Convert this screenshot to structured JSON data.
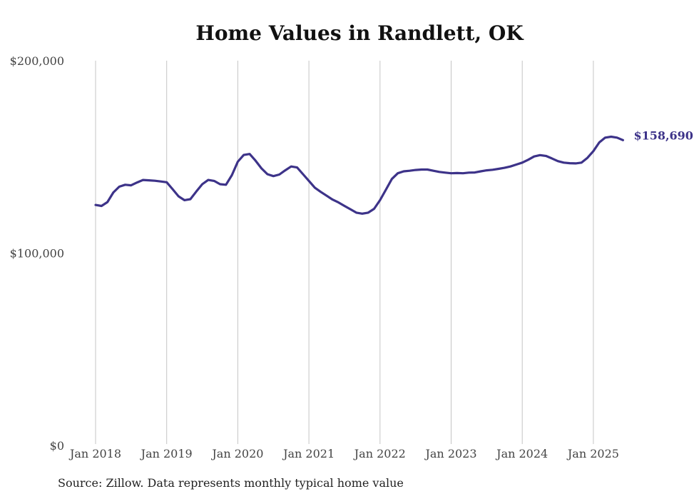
{
  "page": {
    "title": "Home Values in Randlett, OK",
    "source": "Source: Zillow. Data represents monthly typical home value"
  },
  "colors": {
    "line": "#3d3389",
    "grid": "#c4c4c4",
    "tick_text": "#444444"
  },
  "chart_data": {
    "type": "line",
    "title": "Home Values in Randlett, OK",
    "xlabel": "",
    "ylabel": "",
    "ylim": [
      0,
      200000
    ],
    "y_ticks": [
      {
        "value": 0,
        "label": "$0"
      },
      {
        "value": 100000,
        "label": "$100,000"
      },
      {
        "value": 200000,
        "label": "$200,000"
      }
    ],
    "x_ticks": [
      {
        "date": "2018-01",
        "label": "Jan 2018"
      },
      {
        "date": "2019-01",
        "label": "Jan 2019"
      },
      {
        "date": "2020-01",
        "label": "Jan 2020"
      },
      {
        "date": "2021-01",
        "label": "Jan 2021"
      },
      {
        "date": "2022-01",
        "label": "Jan 2022"
      },
      {
        "date": "2023-01",
        "label": "Jan 2023"
      },
      {
        "date": "2024-01",
        "label": "Jan 2024"
      },
      {
        "date": "2025-01",
        "label": "Jan 2025"
      }
    ],
    "grid": "vertical",
    "end_label": "$158,690",
    "series": [
      {
        "x": [
          "2018-01",
          "2018-02",
          "2018-03",
          "2018-04",
          "2018-05",
          "2018-06",
          "2018-07",
          "2018-08",
          "2018-09",
          "2018-10",
          "2018-11",
          "2018-12",
          "2019-01",
          "2019-02",
          "2019-03",
          "2019-04",
          "2019-05",
          "2019-06",
          "2019-07",
          "2019-08",
          "2019-09",
          "2019-10",
          "2019-11",
          "2019-12",
          "2020-01",
          "2020-02",
          "2020-03",
          "2020-04",
          "2020-05",
          "2020-06",
          "2020-07",
          "2020-08",
          "2020-09",
          "2020-10",
          "2020-11",
          "2020-12",
          "2021-01",
          "2021-02",
          "2021-03",
          "2021-04",
          "2021-05",
          "2021-06",
          "2021-07",
          "2021-08",
          "2021-09",
          "2021-10",
          "2021-11",
          "2021-12",
          "2022-01",
          "2022-02",
          "2022-03",
          "2022-04",
          "2022-05",
          "2022-06",
          "2022-07",
          "2022-08",
          "2022-09",
          "2022-10",
          "2022-11",
          "2022-12",
          "2023-01",
          "2023-02",
          "2023-03",
          "2023-04",
          "2023-05",
          "2023-06",
          "2023-07",
          "2023-08",
          "2023-09",
          "2023-10",
          "2023-11",
          "2023-12",
          "2024-01",
          "2024-02",
          "2024-03",
          "2024-04",
          "2024-05",
          "2024-06",
          "2024-07",
          "2024-08",
          "2024-09",
          "2024-10",
          "2024-11",
          "2024-12",
          "2025-01",
          "2025-02",
          "2025-03",
          "2025-04",
          "2025-05",
          "2025-06"
        ],
        "values": [
          125000,
          124500,
          126500,
          131500,
          134500,
          135500,
          135200,
          136700,
          138000,
          137800,
          137600,
          137200,
          136800,
          133200,
          129500,
          127500,
          128000,
          132000,
          135800,
          138000,
          137500,
          135800,
          135500,
          140500,
          147500,
          151000,
          151500,
          148000,
          144000,
          141000,
          140000,
          140800,
          143000,
          145000,
          144500,
          141000,
          137500,
          134000,
          131800,
          129800,
          127800,
          126300,
          124500,
          122800,
          121000,
          120500,
          121000,
          123000,
          127500,
          133000,
          138500,
          141500,
          142500,
          142800,
          143200,
          143400,
          143400,
          142800,
          142200,
          141800,
          141500,
          141600,
          141500,
          141800,
          141900,
          142500,
          143000,
          143300,
          143800,
          144300,
          145000,
          146000,
          147000,
          148500,
          150200,
          150900,
          150500,
          149200,
          147800,
          147000,
          146700,
          146600,
          147000,
          149500,
          153000,
          157500,
          160000,
          160500,
          160000,
          158690
        ]
      }
    ]
  }
}
